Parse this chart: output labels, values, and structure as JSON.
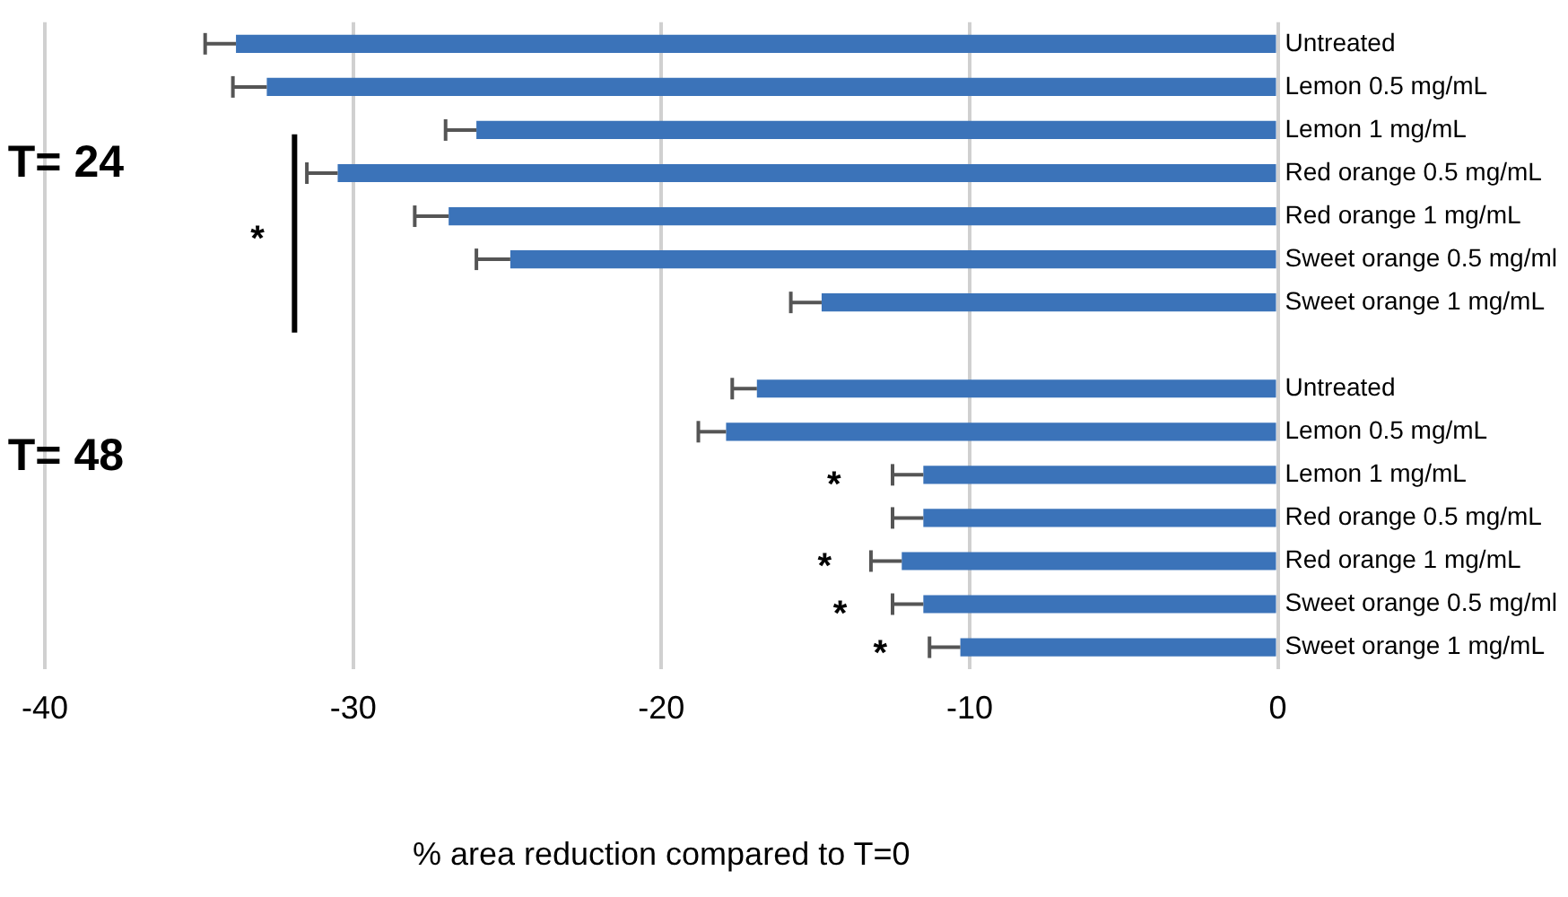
{
  "chart_data": {
    "type": "bar",
    "orientation": "horizontal",
    "xlabel": "% area reduction compared to T=0",
    "categories": [
      "Untreated",
      "Lemon 0.5 mg/mL",
      "Lemon 1 mg/mL",
      "Red orange 0.5 mg/mL",
      "Red orange 1 mg/mL",
      "Sweet orange 0.5 mg/ml",
      "Sweet orange 1 mg/mL",
      null,
      "Untreated",
      "Lemon 0.5 mg/mL",
      "Lemon 1 mg/mL",
      "Red orange 0.5 mg/mL",
      "Red orange 1 mg/mL",
      "Sweet orange 0.5 mg/ml",
      "Sweet orange 1 mg/mL"
    ],
    "values": [
      -33.8,
      -32.8,
      -26.0,
      -30.5,
      -26.9,
      -24.9,
      -14.8,
      null,
      -16.9,
      -17.9,
      -11.5,
      -11.5,
      -12.2,
      -11.5,
      -10.3
    ],
    "errors": [
      [
        -34.8,
        -33.8
      ],
      [
        -33.9,
        -32.8
      ],
      [
        -27.0,
        -26.0
      ],
      [
        -31.5,
        -30.5
      ],
      [
        -28.0,
        -26.9
      ],
      [
        -26.0,
        -24.9
      ],
      [
        -15.8,
        -14.8
      ],
      null,
      [
        -17.7,
        -16.9
      ],
      [
        -18.8,
        -17.9
      ],
      [
        -12.5,
        -11.5
      ],
      [
        -12.5,
        -11.5
      ],
      [
        -13.2,
        -12.2
      ],
      [
        -12.5,
        -11.5
      ],
      [
        -11.3,
        -10.3
      ]
    ],
    "color": "#3b73b9",
    "xlim": [
      -40,
      0
    ],
    "xticks": [
      -40,
      -30,
      -20,
      -10,
      0
    ],
    "grid": "x",
    "annotations": [
      "T= 24",
      "T= 48",
      "*",
      "*",
      "*",
      "*",
      "*"
    ]
  }
}
